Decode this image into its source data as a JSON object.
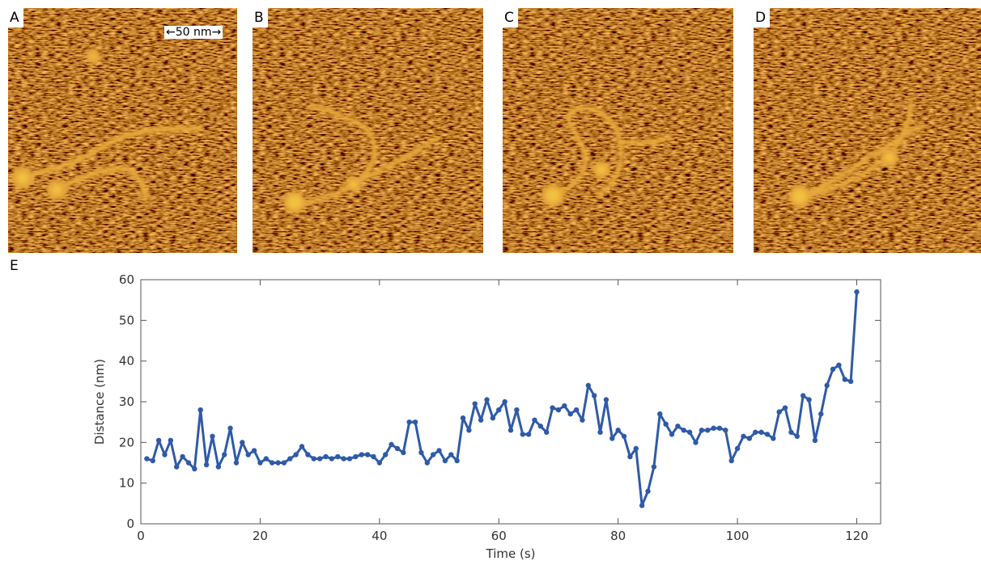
{
  "panels": [
    {
      "label": "A"
    },
    {
      "label": "B"
    },
    {
      "label": "C"
    },
    {
      "label": "D"
    }
  ],
  "scale_bar": "50 nm",
  "chart_data": {
    "type": "line",
    "panel_label": "E",
    "x_label": "Time (s)",
    "y_label": "Distance (nm)",
    "x": [
      1,
      2,
      3,
      4,
      5,
      6,
      7,
      8,
      9,
      10,
      11,
      12,
      13,
      14,
      15,
      16,
      17,
      18,
      19,
      20,
      21,
      22,
      23,
      24,
      25,
      26,
      27,
      28,
      29,
      30,
      31,
      32,
      33,
      34,
      35,
      36,
      37,
      38,
      39,
      40,
      41,
      42,
      43,
      44,
      45,
      46,
      47,
      48,
      49,
      50,
      51,
      52,
      53,
      54,
      55,
      56,
      57,
      58,
      59,
      60,
      61,
      62,
      63,
      64,
      65,
      66,
      67,
      68,
      69,
      70,
      71,
      72,
      73,
      74,
      75,
      76,
      77,
      78,
      79,
      80,
      81,
      82,
      83,
      84,
      85,
      86,
      87,
      88,
      89,
      90,
      91,
      92,
      93,
      94,
      95,
      96,
      97,
      98,
      99,
      100,
      101,
      102,
      103,
      104,
      105,
      106,
      107,
      108,
      109,
      110,
      111,
      112,
      113,
      114,
      115,
      116,
      117,
      118,
      119,
      120
    ],
    "values": [
      16,
      15.5,
      20.5,
      17,
      20.5,
      14,
      16.5,
      15,
      13.5,
      28,
      14.5,
      21.5,
      14,
      17,
      23.5,
      15,
      20,
      17,
      18,
      15,
      16,
      15,
      15,
      15,
      16,
      17,
      19,
      17,
      16,
      16,
      16.5,
      16,
      16.5,
      16,
      16,
      16.5,
      17,
      17,
      16.5,
      15,
      17,
      19.5,
      18.5,
      17.5,
      25,
      25,
      17.5,
      15,
      17,
      18,
      15.5,
      17,
      15.5,
      26,
      23,
      29.5,
      25.5,
      30.5,
      26,
      28,
      30,
      23,
      28,
      22,
      22,
      25.5,
      24,
      22.5,
      28.5,
      28,
      29,
      27,
      28,
      25.5,
      34,
      31.5,
      22.5,
      30.5,
      21,
      23,
      21.5,
      16.5,
      18.5,
      4.5,
      8,
      14,
      27,
      24.5,
      22,
      24,
      23,
      22.5,
      20,
      23,
      23,
      23.5,
      23.5,
      23,
      15.5,
      18.5,
      21.5,
      21,
      22.5,
      22.5,
      22,
      21,
      27.5,
      28.5,
      22.5,
      21.5,
      31.5,
      30.5,
      20.5,
      27,
      34,
      38,
      39,
      35.5,
      35,
      57
    ],
    "color": "#2f5aa8",
    "xlim": [
      0,
      124
    ],
    "ylim": [
      0,
      60
    ],
    "xticks": [
      0,
      20,
      40,
      60,
      80,
      100,
      120
    ],
    "yticks": [
      0,
      10,
      20,
      30,
      40,
      50,
      60
    ]
  }
}
